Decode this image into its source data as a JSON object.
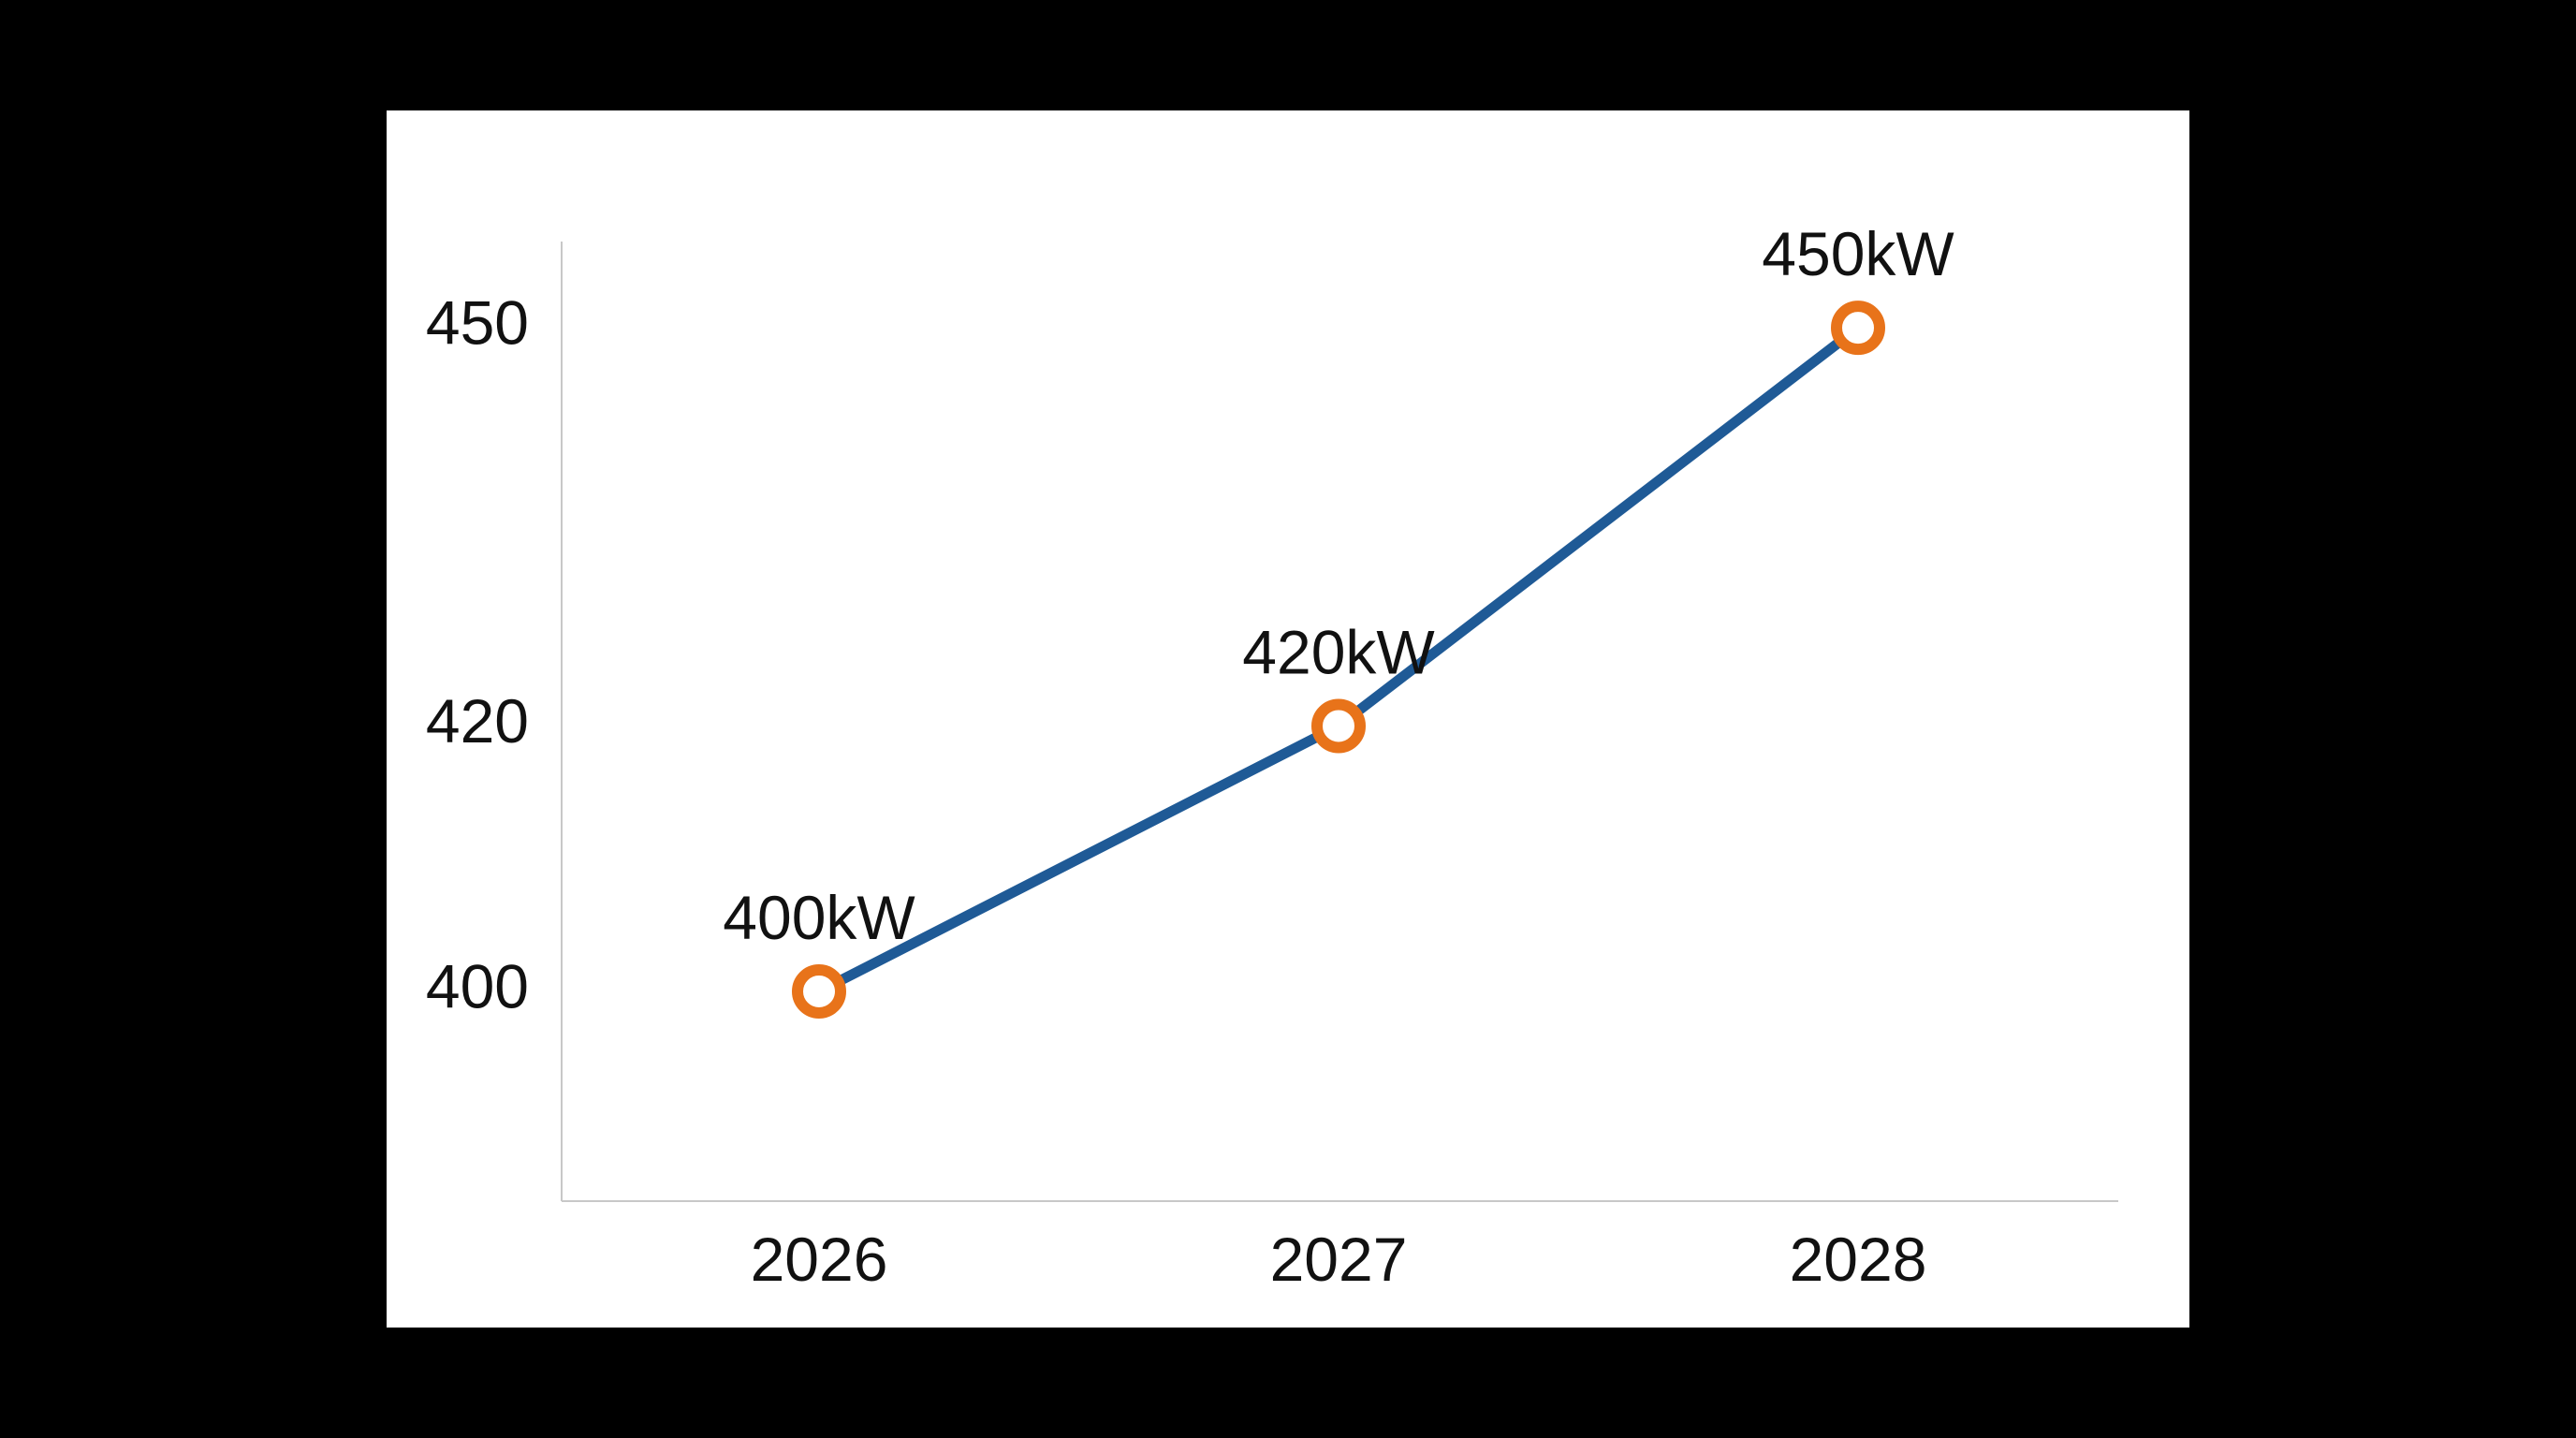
{
  "chart_data": {
    "type": "line",
    "categories": [
      "2026",
      "2027",
      "2028"
    ],
    "series": [
      {
        "values": [
          400,
          420,
          450
        ],
        "data_labels": [
          "400kW",
          "420kW",
          "450kW"
        ]
      }
    ],
    "y_ticks": [
      400,
      420,
      450
    ],
    "y_tick_labels": [
      "400",
      "420",
      "450"
    ],
    "ylim": [
      384.2,
      456.5
    ],
    "title": "",
    "xlabel": "",
    "ylabel": "",
    "grid": false,
    "legend": "none",
    "colors": {
      "line": "#1f5a96",
      "marker_ring": "#e8731a",
      "marker_fill": "#ffffff",
      "axis": "#c8c8c8",
      "background": "#ffffff",
      "frame": "#000000"
    }
  }
}
